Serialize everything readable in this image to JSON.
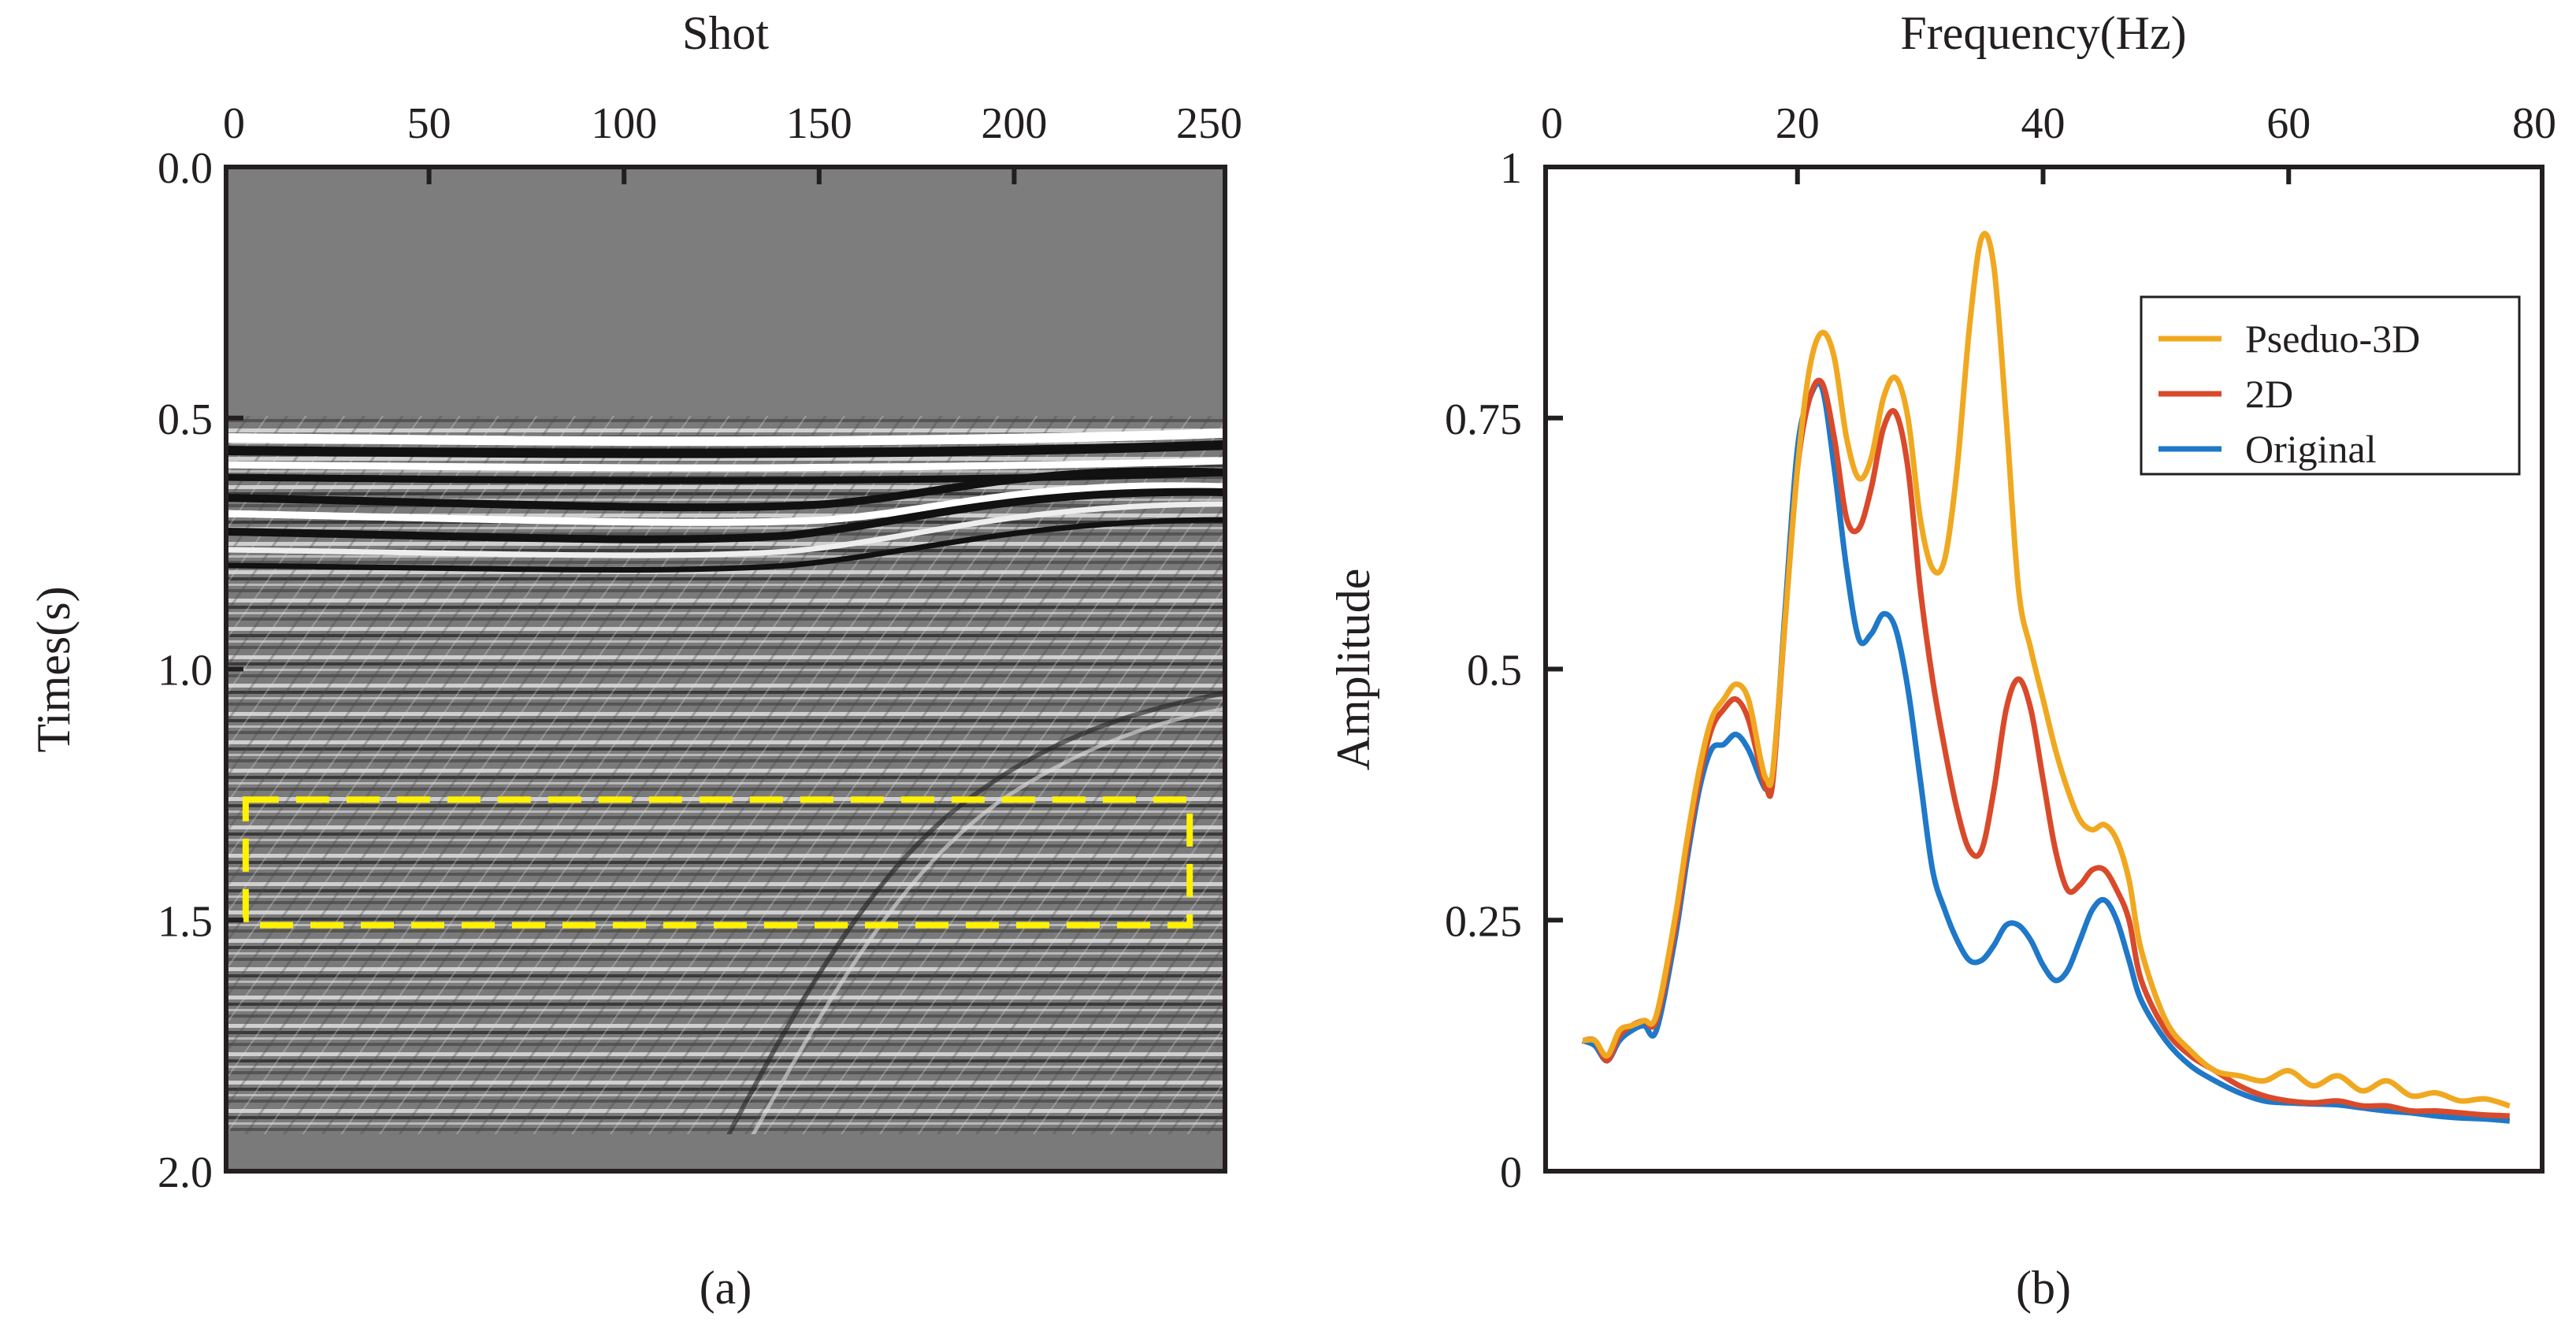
{
  "figure": {
    "panels": [
      "(a)",
      "(b)"
    ]
  },
  "chart_data": [
    {
      "type": "heatmap",
      "description_label": "seismic section",
      "title": "",
      "xlabel": "Shot",
      "ylabel": "Times(s)",
      "xlim": [
        0,
        250
      ],
      "ylim": [
        0.0,
        2.0
      ],
      "x_ticks": [
        0,
        50,
        100,
        150,
        200,
        250
      ],
      "x_tick_labels": [
        "0",
        "50",
        "100",
        "150",
        "200",
        "250"
      ],
      "y_ticks": [
        0.0,
        0.5,
        1.0,
        1.5,
        2.0
      ],
      "y_tick_labels": [
        "0.0",
        "0.5",
        "1.0",
        "1.5",
        "2.0"
      ],
      "highlight_box": {
        "x_range": [
          3,
          245
        ],
        "y_range": [
          1.26,
          1.51
        ],
        "color": "#fff200",
        "style": "dashed"
      },
      "first_arrival_time": 0.53,
      "caption": "(a)"
    },
    {
      "type": "line",
      "title": "",
      "xlabel": "Frequency(Hz)",
      "ylabel": "Amplitude",
      "xlim": [
        0,
        80
      ],
      "ylim": [
        0,
        1
      ],
      "x_ticks": [
        0,
        20,
        40,
        60,
        80
      ],
      "x_tick_labels": [
        "0",
        "20",
        "40",
        "60",
        "80"
      ],
      "y_ticks": [
        0,
        0.25,
        0.5,
        0.75,
        1
      ],
      "y_tick_labels": [
        "0",
        "0.25",
        "0.5",
        "0.75",
        "1"
      ],
      "legend_position": "top-right",
      "caption": "(b)",
      "series": [
        {
          "name": "Pseduo-3D",
          "color": "#f0a820",
          "x": [
            2.5,
            3.5,
            4.5,
            5.5,
            6.5,
            7.5,
            8.5,
            10,
            11,
            12,
            13,
            14,
            15,
            16,
            17,
            17.5,
            18,
            19,
            20,
            21,
            22,
            23,
            24,
            25,
            26,
            27,
            28,
            29,
            30,
            31,
            32,
            33,
            34,
            35,
            36,
            37,
            38,
            39,
            40,
            41,
            42,
            43,
            44,
            45,
            46,
            47,
            48,
            50,
            52,
            54,
            56,
            58,
            60,
            62,
            64,
            66,
            68,
            70,
            72,
            74,
            76,
            78
          ],
          "values": [
            0.13,
            0.13,
            0.115,
            0.14,
            0.145,
            0.15,
            0.155,
            0.25,
            0.33,
            0.4,
            0.45,
            0.47,
            0.485,
            0.47,
            0.41,
            0.39,
            0.4,
            0.55,
            0.7,
            0.8,
            0.835,
            0.81,
            0.73,
            0.69,
            0.71,
            0.77,
            0.79,
            0.75,
            0.65,
            0.6,
            0.61,
            0.7,
            0.84,
            0.93,
            0.9,
            0.75,
            0.58,
            0.52,
            0.47,
            0.42,
            0.38,
            0.35,
            0.34,
            0.345,
            0.33,
            0.29,
            0.22,
            0.15,
            0.12,
            0.1,
            0.095,
            0.09,
            0.1,
            0.085,
            0.095,
            0.08,
            0.09,
            0.075,
            0.078,
            0.07,
            0.072,
            0.065
          ]
        },
        {
          "name": "2D",
          "color": "#d94a2a",
          "x": [
            2.5,
            3.5,
            4.5,
            5.5,
            6.5,
            7.5,
            8.5,
            10,
            11,
            12,
            13,
            14,
            15,
            16,
            17,
            17.5,
            18,
            19,
            20,
            21,
            22,
            23,
            24,
            25,
            26,
            27,
            28,
            29,
            30,
            31,
            32,
            33,
            34,
            35,
            36,
            37,
            38,
            39,
            40,
            41,
            42,
            43,
            44,
            45,
            46,
            47,
            48,
            50,
            52,
            54,
            56,
            58,
            60,
            62,
            64,
            66,
            68,
            70,
            72,
            74,
            76,
            78
          ],
          "values": [
            0.13,
            0.13,
            0.11,
            0.135,
            0.145,
            0.15,
            0.15,
            0.24,
            0.32,
            0.39,
            0.44,
            0.46,
            0.47,
            0.45,
            0.4,
            0.38,
            0.39,
            0.55,
            0.7,
            0.77,
            0.785,
            0.73,
            0.65,
            0.64,
            0.68,
            0.74,
            0.755,
            0.7,
            0.58,
            0.49,
            0.42,
            0.36,
            0.32,
            0.32,
            0.38,
            0.46,
            0.49,
            0.46,
            0.39,
            0.32,
            0.28,
            0.285,
            0.3,
            0.3,
            0.28,
            0.25,
            0.19,
            0.14,
            0.115,
            0.1,
            0.085,
            0.075,
            0.07,
            0.068,
            0.07,
            0.065,
            0.065,
            0.06,
            0.06,
            0.058,
            0.056,
            0.055
          ]
        },
        {
          "name": "Original",
          "color": "#1f78c8",
          "x": [
            2.5,
            3.5,
            4.5,
            5.5,
            6.5,
            7.5,
            8.5,
            10,
            11,
            12,
            13,
            14,
            15,
            16,
            17,
            17.5,
            18,
            19,
            20,
            21,
            22,
            23,
            24,
            25,
            26,
            27,
            28,
            29,
            30,
            31,
            32,
            33,
            34,
            35,
            36,
            37,
            38,
            39,
            40,
            41,
            42,
            43,
            44,
            45,
            46,
            47,
            48,
            50,
            52,
            54,
            56,
            58,
            60,
            62,
            64,
            66,
            68,
            70,
            72,
            74,
            76,
            78
          ],
          "values": [
            0.13,
            0.125,
            0.11,
            0.13,
            0.14,
            0.145,
            0.14,
            0.23,
            0.31,
            0.38,
            0.42,
            0.425,
            0.435,
            0.42,
            0.39,
            0.38,
            0.39,
            0.56,
            0.72,
            0.77,
            0.78,
            0.7,
            0.6,
            0.53,
            0.535,
            0.555,
            0.54,
            0.48,
            0.39,
            0.3,
            0.26,
            0.23,
            0.21,
            0.21,
            0.225,
            0.245,
            0.245,
            0.23,
            0.205,
            0.19,
            0.2,
            0.23,
            0.26,
            0.27,
            0.25,
            0.21,
            0.17,
            0.13,
            0.105,
            0.09,
            0.078,
            0.07,
            0.068,
            0.067,
            0.066,
            0.063,
            0.06,
            0.058,
            0.055,
            0.053,
            0.052,
            0.05
          ]
        }
      ]
    }
  ]
}
